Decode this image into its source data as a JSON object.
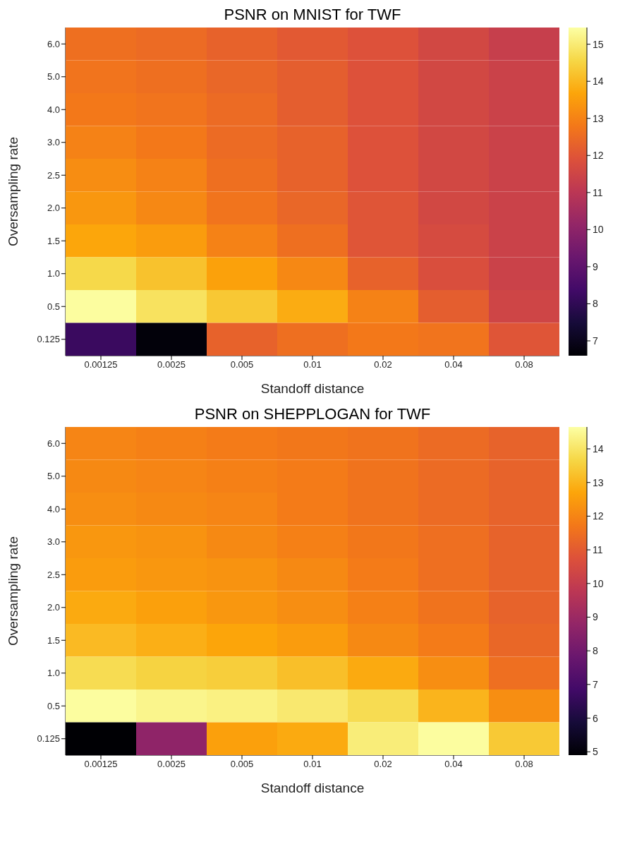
{
  "chart_data": [
    {
      "type": "heatmap",
      "title": "PSNR on MNIST for TWF",
      "xlabel": "Standoff distance",
      "ylabel": "Oversampling rate",
      "categories": [
        "0.00125",
        "0.0025",
        "0.005",
        "0.01",
        "0.02",
        "0.04",
        "0.08"
      ],
      "y_categories": [
        "6.0",
        "5.0",
        "4.0",
        "3.0",
        "2.5",
        "2.0",
        "1.5",
        "1.0",
        "0.5",
        "0.125"
      ],
      "cells": [
        [
          12.6,
          12.5,
          12.3,
          12.1,
          11.9,
          11.6,
          11.3
        ],
        [
          12.7,
          12.6,
          12.4,
          12.2,
          11.9,
          11.6,
          11.4
        ],
        [
          12.8,
          12.7,
          12.5,
          12.2,
          11.9,
          11.6,
          11.4
        ],
        [
          13.0,
          12.8,
          12.5,
          12.3,
          11.9,
          11.6,
          11.4
        ],
        [
          13.2,
          13.0,
          12.6,
          12.3,
          11.9,
          11.6,
          11.4
        ],
        [
          13.4,
          13.1,
          12.7,
          12.4,
          12.0,
          11.6,
          11.4
        ],
        [
          13.7,
          13.5,
          13.0,
          12.6,
          12.0,
          11.7,
          11.4
        ],
        [
          14.6,
          14.2,
          13.6,
          13.1,
          12.3,
          11.8,
          11.4
        ],
        [
          15.4,
          14.8,
          14.3,
          13.8,
          13.0,
          12.2,
          11.5
        ],
        [
          8.2,
          6.7,
          12.3,
          12.6,
          12.8,
          12.7,
          12.0
        ]
      ],
      "clim": [
        6.6,
        15.45
      ],
      "cticks": [
        7,
        8,
        9,
        10,
        11,
        12,
        13,
        14,
        15
      ]
    },
    {
      "type": "heatmap",
      "title": "PSNR on SHEPPLOGAN for TWF",
      "xlabel": "Standoff distance",
      "ylabel": "Oversampling rate",
      "categories": [
        "0.00125",
        "0.0025",
        "0.005",
        "0.01",
        "0.02",
        "0.04",
        "0.08"
      ],
      "y_categories": [
        "6.0",
        "5.0",
        "4.0",
        "3.0",
        "2.5",
        "2.0",
        "1.5",
        "1.0",
        "0.5",
        "0.125"
      ],
      "cells": [
        [
          12.0,
          11.9,
          11.8,
          11.7,
          11.6,
          11.4,
          11.2
        ],
        [
          12.1,
          12.0,
          11.9,
          11.8,
          11.6,
          11.4,
          11.2
        ],
        [
          12.2,
          12.1,
          12.0,
          11.8,
          11.6,
          11.4,
          11.2
        ],
        [
          12.4,
          12.3,
          12.1,
          11.9,
          11.7,
          11.5,
          11.2
        ],
        [
          12.5,
          12.4,
          12.3,
          12.1,
          11.8,
          11.5,
          11.2
        ],
        [
          12.8,
          12.6,
          12.4,
          12.2,
          11.9,
          11.6,
          11.2
        ],
        [
          13.1,
          12.9,
          12.7,
          12.5,
          12.1,
          11.8,
          11.3
        ],
        [
          13.8,
          13.6,
          13.5,
          13.2,
          12.8,
          12.2,
          11.5
        ],
        [
          14.6,
          14.4,
          14.3,
          14.1,
          13.8,
          13.0,
          12.2
        ],
        [
          4.9,
          8.7,
          12.6,
          12.8,
          14.2,
          14.6,
          13.4
        ]
      ],
      "clim": [
        4.9,
        14.65
      ],
      "cticks": [
        5,
        6,
        7,
        8,
        9,
        10,
        11,
        12,
        13,
        14
      ]
    }
  ]
}
